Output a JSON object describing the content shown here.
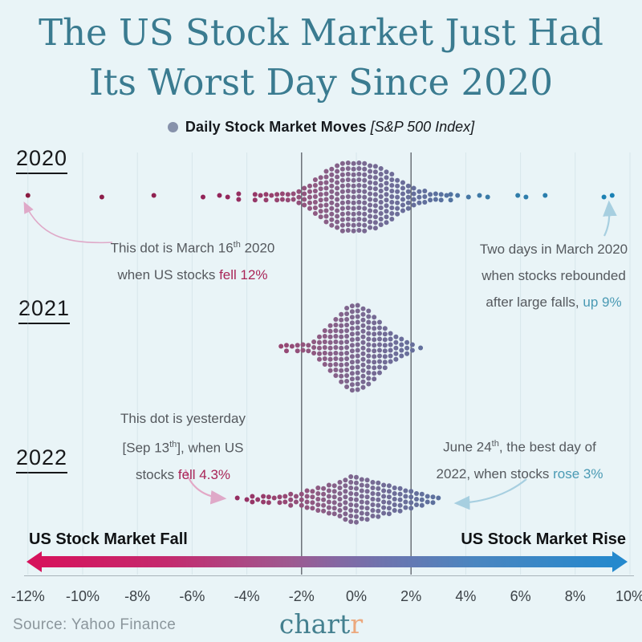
{
  "title": {
    "line1": "The US Stock Market Just Had",
    "line2": "Its Worst Day Since 2020"
  },
  "legend": {
    "label": "Daily Stock Market Moves",
    "detail": "[S&P 500 Index]"
  },
  "annotations": {
    "fall2020": {
      "l1a": "This dot is March 16",
      "l1sup": "th",
      "l1b": " 2020",
      "l2a": "when US stocks ",
      "l2em": "fell 12%"
    },
    "rise2020": {
      "l1": "Two days in March 2020",
      "l2": "when stocks rebounded",
      "l3a": "after large falls, ",
      "l3em": "up 9%"
    },
    "fall2022": {
      "l1": "This dot is yesterday",
      "l2a": "[Sep 13",
      "l2sup": "th",
      "l2b": "], when US",
      "l3a": "stocks ",
      "l3em": "fell 4.3%"
    },
    "rise2022": {
      "l1a": "June 24",
      "l1sup": "th",
      "l1b": ", the best day of",
      "l2a": "2022, when stocks ",
      "l2em": "rose 3%"
    }
  },
  "axis": {
    "fall_label": "US Stock Market Fall",
    "rise_label": "US Stock Market Rise",
    "tick_suffix": "%"
  },
  "footer": {
    "source": "Source: Yahoo Finance",
    "logo_main": "chart",
    "logo_accent": "r"
  },
  "colors": {
    "background": "#e9f4f7",
    "title": "#3a7b90",
    "fall_emphasis": "#a92457",
    "rise_emphasis": "#4a9ab4",
    "gradient_left": "#d6135c",
    "gradient_right": "#2589cd",
    "legend_dot": "#8792ab",
    "guide_line": "#62676f",
    "faint_grid": "#c3d6dd"
  },
  "chart_data": {
    "type": "beeswarm",
    "title": "Daily Stock Market Moves [S&P 500 Index]",
    "x_unit": "percent daily move of S&P 500",
    "x_ticks": [
      -12,
      -10,
      -8,
      -6,
      -4,
      -2,
      0,
      2,
      4,
      6,
      8,
      10
    ],
    "xlim": [
      -13,
      10.5
    ],
    "guide_lines": [
      -2,
      2
    ],
    "annotated_points": [
      {
        "year": "2020",
        "label": "March 16th 2020, US stocks fell 12%",
        "value": -12
      },
      {
        "year": "2020",
        "label": "Two days in March 2020, rebounded up 9%",
        "value": 9
      },
      {
        "year": "2022",
        "label": "Yesterday Sep 13th, stocks fell 4.3%",
        "value": -4.3
      },
      {
        "year": "2022",
        "label": "June 24th, best day of 2022, rose 3%",
        "value": 3
      }
    ],
    "color_stops": [
      [
        -12,
        "#8a1b40"
      ],
      [
        -5,
        "#93245a"
      ],
      [
        -3,
        "#98426f"
      ],
      [
        -1.5,
        "#8f5a82"
      ],
      [
        0,
        "#7c6890"
      ],
      [
        1.5,
        "#6c6d99"
      ],
      [
        3,
        "#5b709e"
      ],
      [
        5,
        "#357ca8"
      ],
      [
        9.5,
        "#1a81b4"
      ]
    ],
    "series": [
      {
        "year": "2020",
        "bins": [
          [
            -12,
            1
          ],
          [
            -9.3,
            1
          ],
          [
            -7.4,
            1
          ],
          [
            -5.6,
            1
          ],
          [
            -5.0,
            1
          ],
          [
            -4.7,
            1
          ],
          [
            -4.3,
            2
          ],
          [
            -3.7,
            2
          ],
          [
            -3.5,
            1
          ],
          [
            -3.3,
            2
          ],
          [
            -3.1,
            1
          ],
          [
            -2.9,
            2
          ],
          [
            -2.7,
            2
          ],
          [
            -2.5,
            2
          ],
          [
            -2.3,
            2
          ],
          [
            -2.1,
            3
          ],
          [
            -1.9,
            4
          ],
          [
            -1.7,
            5
          ],
          [
            -1.5,
            7
          ],
          [
            -1.3,
            8
          ],
          [
            -1.1,
            10
          ],
          [
            -0.9,
            11
          ],
          [
            -0.7,
            12
          ],
          [
            -0.5,
            13
          ],
          [
            -0.3,
            13
          ],
          [
            -0.1,
            13
          ],
          [
            0.1,
            13
          ],
          [
            0.3,
            13
          ],
          [
            0.5,
            12
          ],
          [
            0.7,
            12
          ],
          [
            0.9,
            11
          ],
          [
            1.1,
            10
          ],
          [
            1.3,
            9
          ],
          [
            1.5,
            7
          ],
          [
            1.7,
            6
          ],
          [
            1.9,
            5
          ],
          [
            2.1,
            4
          ],
          [
            2.3,
            3
          ],
          [
            2.5,
            3
          ],
          [
            2.7,
            2
          ],
          [
            2.9,
            2
          ],
          [
            3.1,
            2
          ],
          [
            3.3,
            1
          ],
          [
            3.45,
            2
          ],
          [
            3.7,
            1
          ],
          [
            4.1,
            1
          ],
          [
            4.5,
            1
          ],
          [
            4.8,
            1
          ],
          [
            5.9,
            1
          ],
          [
            6.2,
            1
          ],
          [
            6.9,
            1
          ],
          [
            9.05,
            1
          ],
          [
            9.35,
            1
          ]
        ]
      },
      {
        "year": "2021",
        "bins": [
          [
            -2.75,
            1
          ],
          [
            -2.55,
            2
          ],
          [
            -2.35,
            1
          ],
          [
            -2.15,
            2
          ],
          [
            -1.95,
            2
          ],
          [
            -1.75,
            2
          ],
          [
            -1.55,
            3
          ],
          [
            -1.35,
            5
          ],
          [
            -1.15,
            7
          ],
          [
            -0.95,
            9
          ],
          [
            -0.75,
            11
          ],
          [
            -0.55,
            13
          ],
          [
            -0.35,
            15
          ],
          [
            -0.15,
            16
          ],
          [
            0.05,
            16
          ],
          [
            0.25,
            15
          ],
          [
            0.45,
            14
          ],
          [
            0.65,
            12
          ],
          [
            0.85,
            10
          ],
          [
            1.05,
            8
          ],
          [
            1.25,
            6
          ],
          [
            1.45,
            5
          ],
          [
            1.65,
            4
          ],
          [
            1.85,
            3
          ],
          [
            2.05,
            2
          ],
          [
            2.35,
            1
          ]
        ]
      },
      {
        "year": "2022",
        "bins": [
          [
            -4.35,
            1
          ],
          [
            -4.0,
            1
          ],
          [
            -3.8,
            2
          ],
          [
            -3.6,
            1
          ],
          [
            -3.4,
            2
          ],
          [
            -3.2,
            2
          ],
          [
            -3.0,
            1
          ],
          [
            -2.8,
            2
          ],
          [
            -2.6,
            2
          ],
          [
            -2.4,
            3
          ],
          [
            -2.2,
            2
          ],
          [
            -2.0,
            3
          ],
          [
            -1.8,
            4
          ],
          [
            -1.6,
            4
          ],
          [
            -1.4,
            5
          ],
          [
            -1.2,
            5
          ],
          [
            -1.0,
            6
          ],
          [
            -0.8,
            6
          ],
          [
            -0.6,
            7
          ],
          [
            -0.4,
            8
          ],
          [
            -0.2,
            9
          ],
          [
            0.0,
            9
          ],
          [
            0.2,
            8
          ],
          [
            0.4,
            8
          ],
          [
            0.6,
            7
          ],
          [
            0.8,
            7
          ],
          [
            1.0,
            6
          ],
          [
            1.2,
            6
          ],
          [
            1.4,
            5
          ],
          [
            1.6,
            5
          ],
          [
            1.8,
            4
          ],
          [
            2.0,
            4
          ],
          [
            2.2,
            3
          ],
          [
            2.4,
            3
          ],
          [
            2.6,
            2
          ],
          [
            2.8,
            2
          ],
          [
            3.0,
            1
          ]
        ]
      }
    ]
  }
}
